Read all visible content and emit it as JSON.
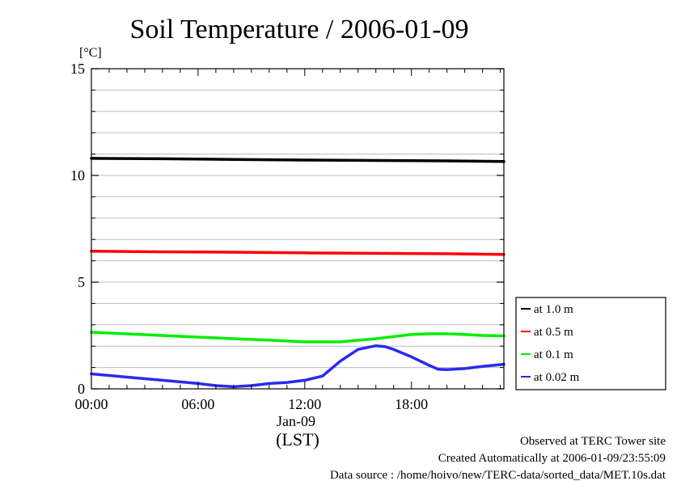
{
  "chart_data": {
    "type": "line",
    "title": "Soil Temperature / 2006-01-09",
    "ylabel": "[°C]",
    "xlabel": "(LST)",
    "date_label": "Jan-09",
    "ylim": [
      0,
      15
    ],
    "xlim": [
      0,
      23.2
    ],
    "y_ticks": [
      0,
      5,
      10,
      15
    ],
    "y_minor_step": 1,
    "x_ticks": [
      {
        "value": 0,
        "label": "00:00"
      },
      {
        "value": 6,
        "label": "06:00"
      },
      {
        "value": 12,
        "label": "12:00"
      },
      {
        "value": 18,
        "label": "18:00"
      }
    ],
    "grid": true,
    "legend_position": "right",
    "series": [
      {
        "name": "at 1.0 m",
        "color": "#000000",
        "x": [
          0,
          4,
          8,
          12,
          16,
          20,
          23.2
        ],
        "y": [
          10.8,
          10.78,
          10.75,
          10.72,
          10.7,
          10.68,
          10.65
        ]
      },
      {
        "name": "at 0.5 m",
        "color": "#ff0000",
        "x": [
          0,
          4,
          8,
          12,
          16,
          20,
          23.2
        ],
        "y": [
          6.45,
          6.42,
          6.4,
          6.37,
          6.35,
          6.33,
          6.3
        ]
      },
      {
        "name": "at 0.1 m",
        "color": "#00ee00",
        "x": [
          0,
          4,
          8,
          10,
          12,
          14,
          16,
          17,
          18,
          19,
          20,
          21,
          22,
          23.2
        ],
        "y": [
          2.65,
          2.5,
          2.35,
          2.28,
          2.2,
          2.2,
          2.35,
          2.45,
          2.55,
          2.58,
          2.58,
          2.55,
          2.5,
          2.48
        ]
      },
      {
        "name": "at 0.02 m",
        "color": "#2a2aee",
        "x": [
          0,
          2,
          4,
          6,
          7,
          8,
          9,
          10,
          11,
          12,
          12.5,
          13,
          14,
          15,
          16,
          16.5,
          17,
          18,
          19,
          19.5,
          20,
          21,
          22,
          23.2
        ],
        "y": [
          0.7,
          0.55,
          0.4,
          0.25,
          0.15,
          0.1,
          0.15,
          0.25,
          0.3,
          0.4,
          0.5,
          0.6,
          1.3,
          1.85,
          2.02,
          1.98,
          1.85,
          1.5,
          1.1,
          0.92,
          0.9,
          0.95,
          1.05,
          1.15
        ]
      }
    ]
  },
  "footer": {
    "line1": "Observed at TERC Tower site",
    "line2": "Created Automatically at 2006-01-09/23:55:09",
    "line3": "Data source : /home/hoivo/new/TERC-data/sorted_data/MET.10s.dat"
  }
}
